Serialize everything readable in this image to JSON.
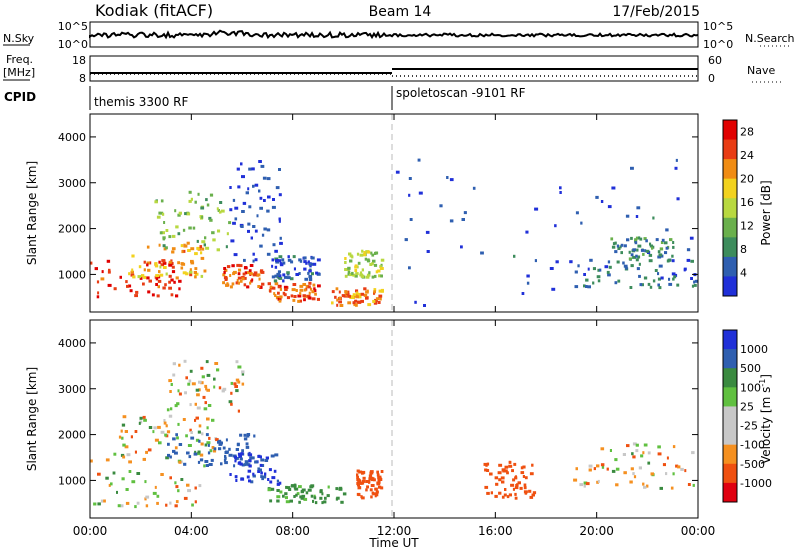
{
  "header": {
    "left": "Kodiak (fitACF)",
    "center": "Beam 14",
    "right": "17/Feb/2015"
  },
  "nsky_panel": {
    "left_label": "N.Sky",
    "left_ticks": [
      "10^5",
      "10^0"
    ],
    "right_ticks": [
      "10^5",
      "10^0"
    ],
    "right_label": "N.Search"
  },
  "freq_panel": {
    "left_label_1": "Freq.",
    "left_label_2": "[MHz]",
    "left_ticks": [
      "18",
      "8"
    ],
    "right_ticks": [
      "60",
      "0"
    ],
    "right_label": "Nave"
  },
  "cpid_panel": {
    "label": "CPID",
    "modes": [
      {
        "name": "themis 3300 RF",
        "start": "00:00"
      },
      {
        "name": "spoletoscan -9101 RF",
        "start": "12:00"
      }
    ]
  },
  "colors": {
    "power": [
      "#2030d8",
      "#2f5fb0",
      "#3d8c5c",
      "#6ab04c",
      "#b8d840",
      "#f2d21e",
      "#f08c14",
      "#e83c14",
      "#e00000"
    ],
    "velocity": [
      "#e00010",
      "#ef5010",
      "#f59020",
      "#c8c8c8",
      "#c8c8c8",
      "#60c040",
      "#3a8a40",
      "#2f5fb0",
      "#2030d8"
    ]
  },
  "chart_data": [
    {
      "type": "heatmap",
      "title": "Power",
      "xlabel": "",
      "ylabel": "Slant Range [km]",
      "x_ticks": [
        "00:00",
        "04:00",
        "08:00",
        "12:00",
        "16:00",
        "20:00",
        "00:00"
      ],
      "y_ticks": [
        1000,
        2000,
        3000,
        4000
      ],
      "ylim": [
        180,
        4500
      ],
      "colorbar": {
        "label": "Power [dB]",
        "ticks": [
          4,
          8,
          12,
          16,
          20,
          24,
          28
        ],
        "range": [
          0,
          30
        ]
      },
      "regions": [
        {
          "t": [
            0,
            3.5
          ],
          "r": [
            500,
            1300
          ],
          "level": 27
        },
        {
          "t": [
            1.5,
            4.5
          ],
          "r": [
            900,
            1700
          ],
          "level": 20
        },
        {
          "t": [
            2.5,
            5.5
          ],
          "r": [
            1500,
            2800
          ],
          "level": 12
        },
        {
          "t": [
            5.2,
            6.8
          ],
          "r": [
            700,
            1200
          ],
          "level": 24
        },
        {
          "t": [
            5.5,
            7.5
          ],
          "r": [
            1200,
            3500
          ],
          "level": 3
        },
        {
          "t": [
            7,
            9
          ],
          "r": [
            400,
            800
          ],
          "level": 24
        },
        {
          "t": [
            7,
            9
          ],
          "r": [
            800,
            1400
          ],
          "level": 4
        },
        {
          "t": [
            9.5,
            11.5
          ],
          "r": [
            300,
            700
          ],
          "level": 22
        },
        {
          "t": [
            10,
            11.5
          ],
          "r": [
            900,
            1500
          ],
          "level": 14
        },
        {
          "t": [
            12,
            24
          ],
          "r": [
            300,
            3500
          ],
          "level": 3
        },
        {
          "t": [
            20.5,
            23
          ],
          "r": [
            1300,
            1800
          ],
          "level": 8
        },
        {
          "t": [
            19,
            24
          ],
          "r": [
            700,
            1300
          ],
          "level": 6
        }
      ]
    },
    {
      "type": "heatmap",
      "title": "Velocity",
      "xlabel": "Time UT",
      "ylabel": "Slant Range [km]",
      "x_ticks": [
        "00:00",
        "04:00",
        "08:00",
        "12:00",
        "16:00",
        "20:00",
        "00:00"
      ],
      "y_ticks": [
        1000,
        2000,
        3000,
        4000
      ],
      "ylim": [
        180,
        4500
      ],
      "colorbar": {
        "label": "Velocity [m s^-1]",
        "ticks": [
          "1000",
          "500",
          "100",
          "25",
          "-25",
          "-100",
          "-500",
          "-1000"
        ]
      },
      "regions": [
        {
          "t": [
            0,
            4.5
          ],
          "r": [
            400,
            1600
          ],
          "level": 0
        },
        {
          "t": [
            1,
            5
          ],
          "r": [
            1600,
            2400
          ],
          "level": 0
        },
        {
          "t": [
            3,
            6.5
          ],
          "r": [
            1300,
            2000
          ],
          "level": 700
        },
        {
          "t": [
            5.5,
            7.5
          ],
          "r": [
            900,
            1600
          ],
          "level": 1000
        },
        {
          "t": [
            7,
            10
          ],
          "r": [
            500,
            900
          ],
          "level": 200
        },
        {
          "t": [
            10.5,
            11.5
          ],
          "r": [
            600,
            1200
          ],
          "level": -300
        },
        {
          "t": [
            15.5,
            17.5
          ],
          "r": [
            600,
            1400
          ],
          "level": -300
        },
        {
          "t": [
            19,
            24
          ],
          "r": [
            800,
            1800
          ],
          "level": -30
        },
        {
          "t": [
            3,
            6
          ],
          "r": [
            2500,
            3600
          ],
          "level": 0
        }
      ]
    }
  ]
}
